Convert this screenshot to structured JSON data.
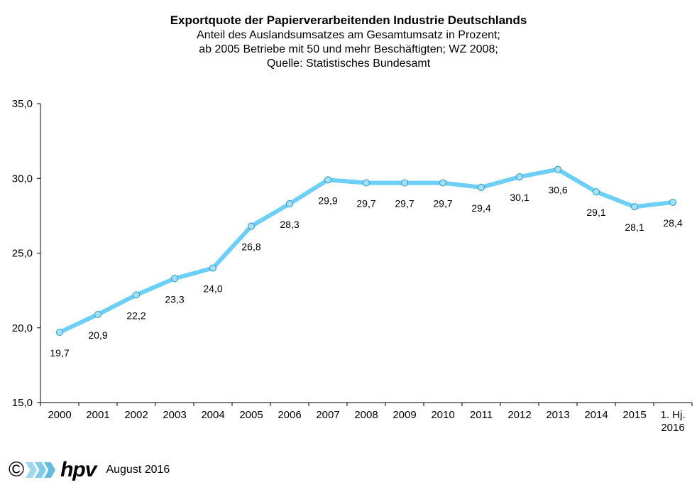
{
  "chart_data": {
    "type": "line",
    "title": "Exportquote der Papierverarbeitenden Industrie Deutschlands",
    "subtitle": [
      "Anteil des Auslandsumsatzes  am Gesamtumsatz  in Prozent;",
      "ab 2005 Betriebe mit 50 und mehr Beschäftigten; WZ 2008;",
      "Quelle:  Statistisches  Bundesamt"
    ],
    "categories": [
      "2000",
      "2001",
      "2002",
      "2003",
      "2004",
      "2005",
      "2006",
      "2007",
      "2008",
      "2009",
      "2010",
      "2011",
      "2012",
      "2013",
      "2014",
      "2015",
      "1. Hj.\n2016"
    ],
    "series": [
      {
        "values": [
          19.7,
          20.9,
          22.2,
          23.3,
          24.0,
          26.8,
          28.3,
          29.9,
          29.7,
          29.7,
          29.7,
          29.4,
          30.1,
          30.6,
          29.1,
          28.1,
          28.4
        ],
        "data_labels": [
          "19,7",
          "20,9",
          "22,2",
          "23,3",
          "24,0",
          "26,8",
          "28,3",
          "29,9",
          "29,7",
          "29,7",
          "29,7",
          "29,4",
          "30,1",
          "30,6",
          "29,1",
          "28,1",
          "28,4"
        ],
        "color": "#6ccff6"
      }
    ],
    "ylim": [
      15,
      35
    ],
    "yticks": [
      15,
      20,
      25,
      30,
      35
    ],
    "ytick_labels": [
      "15,0",
      "20,0",
      "25,0",
      "30,0",
      "35,0"
    ],
    "grid": false,
    "xlabel": "",
    "ylabel": ""
  },
  "footer": {
    "copyright": "©",
    "logo": "hpv",
    "date": "August 2016"
  }
}
